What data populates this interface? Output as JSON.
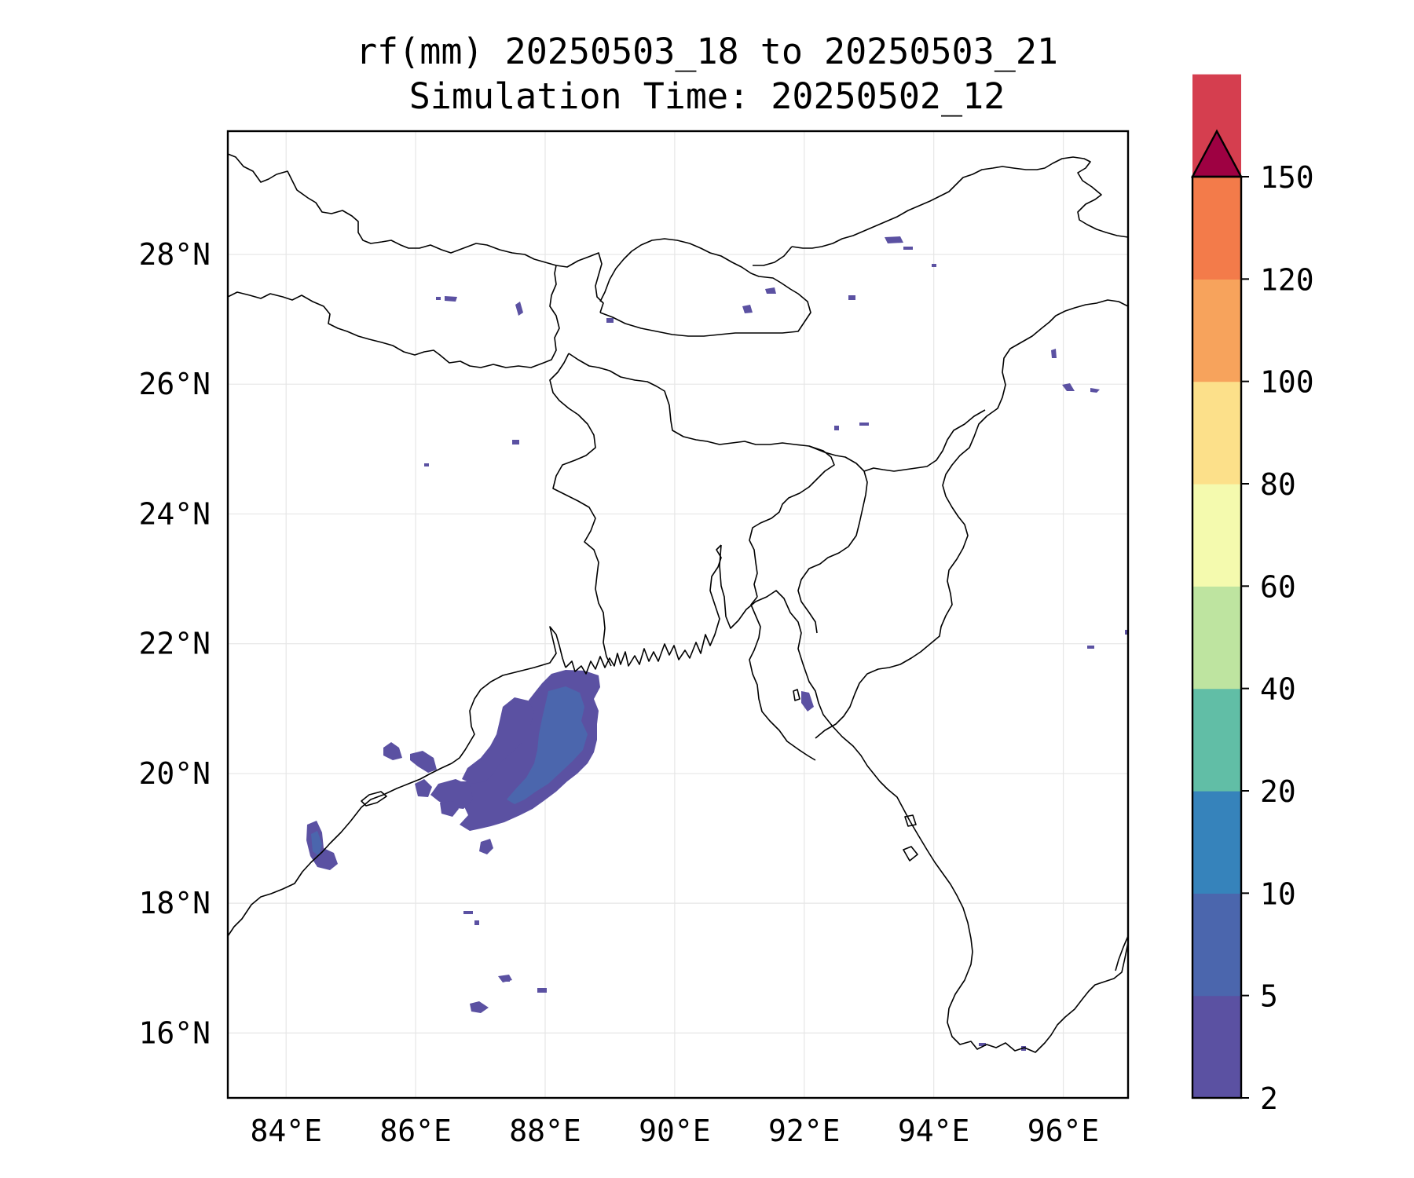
{
  "title": {
    "line1": "rf(mm) 20250503_18 to 20250503_21",
    "line2": "Simulation Time: 20250502_12"
  },
  "map": {
    "lon_range": [
      83.1,
      97.0
    ],
    "lat_range": [
      15.0,
      29.9
    ],
    "x_ticks": [
      {
        "value": 84,
        "label": "84°E"
      },
      {
        "value": 86,
        "label": "86°E"
      },
      {
        "value": 88,
        "label": "88°E"
      },
      {
        "value": 90,
        "label": "90°E"
      },
      {
        "value": 92,
        "label": "92°E"
      },
      {
        "value": 94,
        "label": "94°E"
      },
      {
        "value": 96,
        "label": "96°E"
      }
    ],
    "y_ticks": [
      {
        "value": 16,
        "label": "16°N"
      },
      {
        "value": 18,
        "label": "18°N"
      },
      {
        "value": 20,
        "label": "20°N"
      },
      {
        "value": 22,
        "label": "22°N"
      },
      {
        "value": 24,
        "label": "24°N"
      },
      {
        "value": 26,
        "label": "26°N"
      },
      {
        "value": 28,
        "label": "28°N"
      }
    ],
    "gridlines": true
  },
  "colorbar": {
    "levels": [
      "2",
      "5",
      "10",
      "20",
      "40",
      "60",
      "80",
      "100",
      "120",
      "150"
    ],
    "colors": [
      "#5b51a2",
      "#4b66ad",
      "#3683bb",
      "#61bea6",
      "#bee4a0",
      "#f4faae",
      "#fce08a",
      "#f7a35c",
      "#f37b4a",
      "#d53e4f"
    ],
    "extend_color": "#9e0142",
    "extend": "max"
  },
  "rain_colors": {
    "light": "#5b51a2",
    "medium": "#4b66ad"
  }
}
